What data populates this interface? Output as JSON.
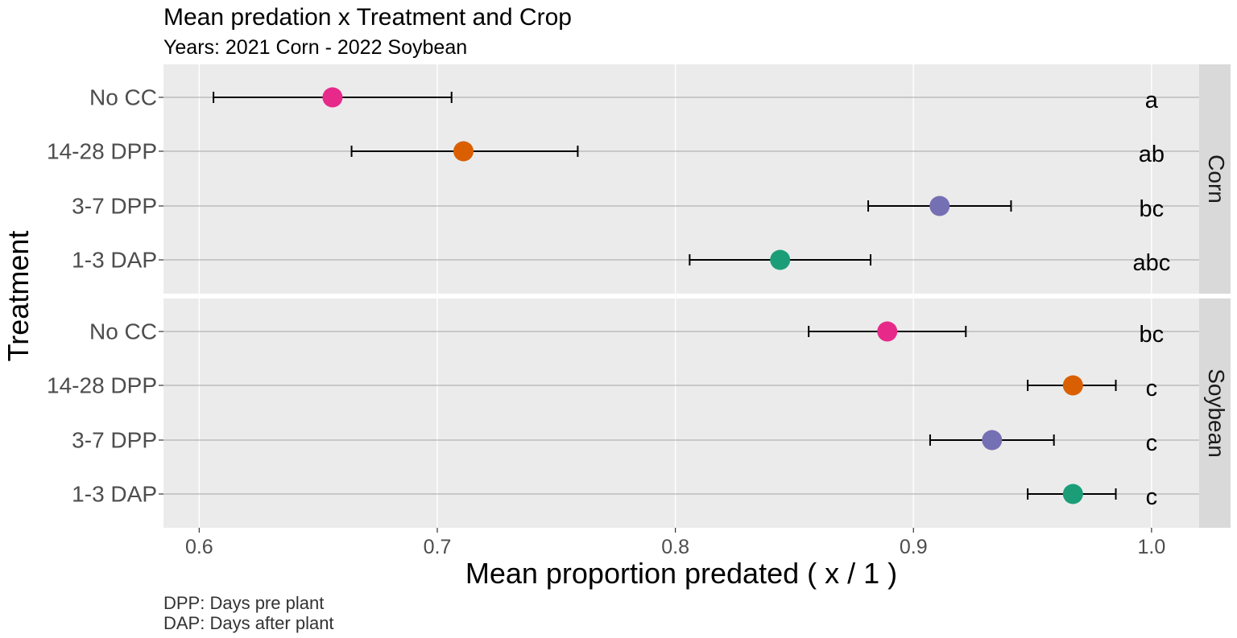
{
  "chart_data": {
    "type": "scatter",
    "title": "Mean predation x Treatment and Crop",
    "subtitle": "Years: 2021 Corn - 2022 Soybean",
    "xlabel": "Mean proportion predated ( x / 1 )",
    "ylabel": "Treatment",
    "xlim": [
      0.585,
      1.02
    ],
    "xticks": [
      0.6,
      0.7,
      0.8,
      0.9,
      1.0
    ],
    "xtick_labels": [
      "0.6",
      "0.7",
      "0.8",
      "0.9",
      "1.0"
    ],
    "categories": [
      "No CC",
      "14-28 DPP",
      "3-7 DPP",
      "1-3 DAP"
    ],
    "grid": true,
    "panels": [
      {
        "name": "Corn",
        "points": [
          {
            "treatment": "No CC",
            "mean": 0.656,
            "lower": 0.606,
            "upper": 0.706,
            "letter": "a",
            "color": "#E7298A"
          },
          {
            "treatment": "14-28 DPP",
            "mean": 0.711,
            "lower": 0.664,
            "upper": 0.759,
            "letter": "ab",
            "color": "#D95F02"
          },
          {
            "treatment": "3-7 DPP",
            "mean": 0.911,
            "lower": 0.881,
            "upper": 0.941,
            "letter": "bc",
            "color": "#7570B3"
          },
          {
            "treatment": "1-3 DAP",
            "mean": 0.844,
            "lower": 0.806,
            "upper": 0.882,
            "letter": "abc",
            "color": "#1B9E77"
          }
        ]
      },
      {
        "name": "Soybean",
        "points": [
          {
            "treatment": "No CC",
            "mean": 0.889,
            "lower": 0.856,
            "upper": 0.922,
            "letter": "bc",
            "color": "#E7298A"
          },
          {
            "treatment": "14-28 DPP",
            "mean": 0.967,
            "lower": 0.948,
            "upper": 0.985,
            "letter": "c",
            "color": "#D95F02"
          },
          {
            "treatment": "3-7 DPP",
            "mean": 0.933,
            "lower": 0.907,
            "upper": 0.959,
            "letter": "c",
            "color": "#7570B3"
          },
          {
            "treatment": "1-3 DAP",
            "mean": 0.967,
            "lower": 0.948,
            "upper": 0.985,
            "letter": "c",
            "color": "#1B9E77"
          }
        ]
      }
    ],
    "caption": [
      "DPP: Days pre plant",
      "DAP: Days after plant"
    ]
  }
}
